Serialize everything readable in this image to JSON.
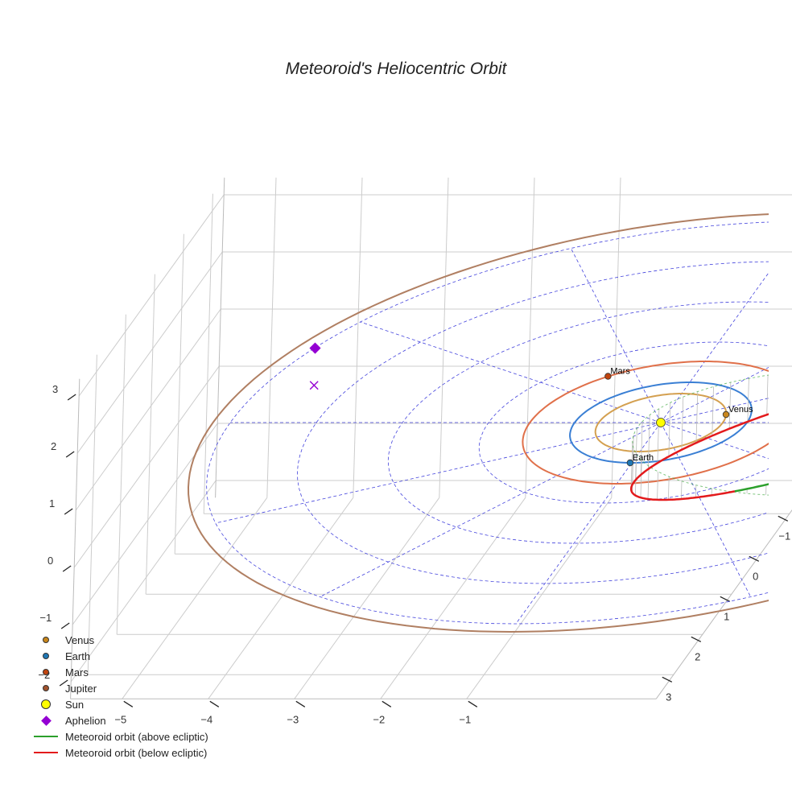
{
  "chart_data": {
    "type": "scatter3d",
    "title": "Meteoroid's Heliocentric Orbit",
    "x_ticks": [
      -5,
      -4,
      -3,
      -2,
      -1
    ],
    "y_ticks": [
      -1,
      0,
      1,
      2,
      3
    ],
    "z_ticks": [
      -2,
      -1,
      0,
      1,
      2,
      3
    ],
    "xlim": [
      -5.6,
      1.2
    ],
    "ylim": [
      -1.4,
      3.6
    ],
    "zlim": [
      -2.3,
      3.3
    ],
    "planets": [
      {
        "name": "Venus",
        "label": "Venus",
        "a": 0.72,
        "pos": [
          0.69,
          -0.2,
          0
        ],
        "orbit_color": "#d4a050",
        "marker_color": "#c8861b",
        "show_label": true
      },
      {
        "name": "Earth",
        "label": "Earth",
        "a": 1.0,
        "pos": [
          -0.02,
          1.0,
          0
        ],
        "orbit_color": "#3a7fd4",
        "marker_color": "#1f77b4",
        "show_label": true
      },
      {
        "name": "Mars",
        "label": "Mars",
        "a": 1.52,
        "pos": [
          -1.0,
          -1.15,
          0
        ],
        "orbit_color": "#e0704a",
        "marker_color": "#c1440e",
        "show_label": true
      },
      {
        "name": "Jupiter",
        "label": "",
        "a": 5.2,
        "pos": null,
        "orbit_color": "#b07f62",
        "marker_color": "#a0522d",
        "show_label": false
      }
    ],
    "sun": {
      "name": "Sun",
      "pos": [
        0,
        0,
        0
      ],
      "color": "#ffff00"
    },
    "aphelion": {
      "name": "Aphelion",
      "pos": [
        -4.2,
        -0.5,
        0.95
      ],
      "color": "#9400d3"
    },
    "meteoroid_orbit": {
      "semi_major_axis": 2.25,
      "eccentricity": 0.9,
      "max_z": 0.95,
      "above_name": "Meteoroid orbit (above ecliptic)",
      "above_color": "#2ca02c",
      "below_name": "Meteoroid orbit (below ecliptic)",
      "below_color": "#e31a1c"
    },
    "polar_grid": {
      "radii": [
        1,
        2,
        3,
        4,
        5
      ],
      "spokes_deg": 30,
      "color": "#4444dd"
    },
    "legend_position": "bottom-left"
  },
  "legend": [
    {
      "label": "Venus",
      "type": "dot",
      "color": "#c8861b"
    },
    {
      "label": "Earth",
      "type": "dot",
      "color": "#1f77b4"
    },
    {
      "label": "Mars",
      "type": "dot",
      "color": "#c1440e"
    },
    {
      "label": "Jupiter",
      "type": "dot",
      "color": "#a0522d"
    },
    {
      "label": "Sun",
      "type": "sun",
      "color": "#ffff00"
    },
    {
      "label": "Aphelion",
      "type": "diamond",
      "color": "#9400d3"
    },
    {
      "label": "Meteoroid orbit (above ecliptic)",
      "type": "line",
      "color": "#2ca02c"
    },
    {
      "label": "Meteoroid orbit (below ecliptic)",
      "type": "line",
      "color": "#e31a1c"
    }
  ]
}
